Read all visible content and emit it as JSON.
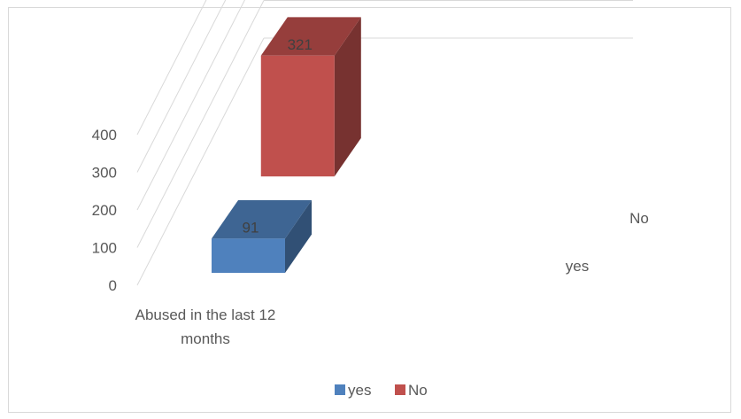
{
  "chart_data": {
    "type": "bar",
    "subtype": "3d-column",
    "title": "",
    "xlabel": "",
    "ylabel": "",
    "categories": [
      "Abused in the last 12 months"
    ],
    "series": [
      {
        "name": "yes",
        "values": [
          91
        ],
        "color": "#4f81bd"
      },
      {
        "name": "No",
        "values": [
          321
        ],
        "color": "#c0504d"
      }
    ],
    "ylim": [
      0,
      400
    ],
    "yticks": [
      0,
      100,
      200,
      300,
      400
    ],
    "grid": true,
    "legend": "bottom",
    "data_labels": true
  }
}
